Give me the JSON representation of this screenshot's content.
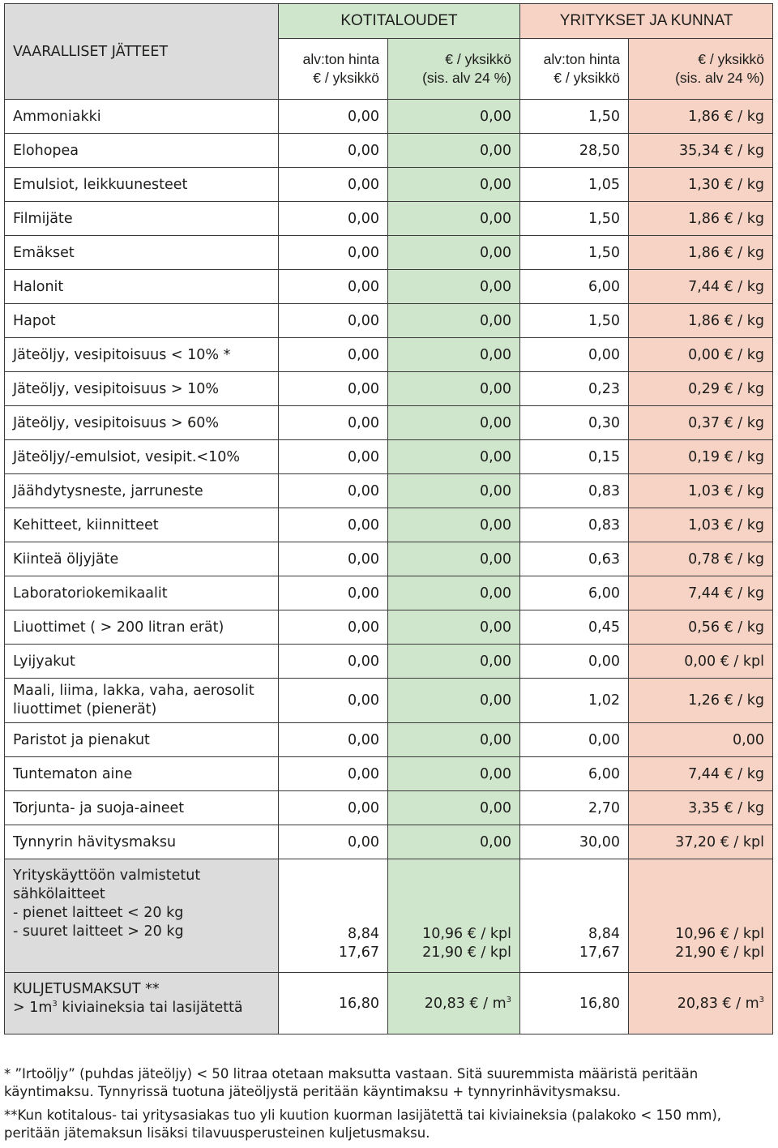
{
  "table": {
    "corner_label": "VAARALLISET JÄTTEET",
    "group_households": "KOTITALOUDET",
    "group_business": "YRITYKSET JA KUNNAT",
    "sub_headers": {
      "h_net_1": "alv:ton hinta",
      "h_net_2": "€ / yksikkö",
      "h_vat_1": "€ / yksikkö",
      "h_vat_2": "(sis. alv 24 %)",
      "y_net_1": "alv:ton hinta",
      "y_net_2": "€ / yksikkö",
      "y_vat_1": "€ / yksikkö",
      "y_vat_2": "(sis. alv 24 %)"
    },
    "rows": [
      {
        "name": "Ammoniakki",
        "h_net": "0,00",
        "h_vat": "0,00",
        "y_net": "1,50",
        "y_vat": "1,86 € / kg"
      },
      {
        "name": "Elohopea",
        "h_net": "0,00",
        "h_vat": "0,00",
        "y_net": "28,50",
        "y_vat": "35,34 € / kg"
      },
      {
        "name": "Emulsiot, leikkuunesteet",
        "h_net": "0,00",
        "h_vat": "0,00",
        "y_net": "1,05",
        "y_vat": "1,30 € / kg"
      },
      {
        "name": "Filmijäte",
        "h_net": "0,00",
        "h_vat": "0,00",
        "y_net": "1,50",
        "y_vat": "1,86 € / kg"
      },
      {
        "name": "Emäkset",
        "h_net": "0,00",
        "h_vat": "0,00",
        "y_net": "1,50",
        "y_vat": "1,86 € / kg"
      },
      {
        "name": "Halonit",
        "h_net": "0,00",
        "h_vat": "0,00",
        "y_net": "6,00",
        "y_vat": "7,44 € / kg"
      },
      {
        "name": "Hapot",
        "h_net": "0,00",
        "h_vat": "0,00",
        "y_net": "1,50",
        "y_vat": "1,86 € / kg"
      },
      {
        "name": "Jäteöljy, vesipitoisuus < 10% *",
        "h_net": "0,00",
        "h_vat": "0,00",
        "y_net": "0,00",
        "y_vat": "0,00 € / kg"
      },
      {
        "name": "Jäteöljy, vesipitoisuus > 10%",
        "h_net": "0,00",
        "h_vat": "0,00",
        "y_net": "0,23",
        "y_vat": "0,29 € / kg"
      },
      {
        "name": "Jäteöljy, vesipitoisuus > 60%",
        "h_net": "0,00",
        "h_vat": "0,00",
        "y_net": "0,30",
        "y_vat": "0,37 € / kg"
      },
      {
        "name": "Jäteöljy/-emulsiot, vesipit.<10%",
        "h_net": "0,00",
        "h_vat": "0,00",
        "y_net": "0,15",
        "y_vat": "0,19 € / kg"
      },
      {
        "name": "Jäähdytysneste, jarruneste",
        "h_net": "0,00",
        "h_vat": "0,00",
        "y_net": "0,83",
        "y_vat": "1,03 € / kg"
      },
      {
        "name": "Kehitteet, kiinnitteet",
        "h_net": "0,00",
        "h_vat": "0,00",
        "y_net": "0,83",
        "y_vat": "1,03 € / kg"
      },
      {
        "name": "Kiinteä öljyjäte",
        "h_net": "0,00",
        "h_vat": "0,00",
        "y_net": "0,63",
        "y_vat": "0,78 € / kg"
      },
      {
        "name": "Laboratoriokemikaalit",
        "h_net": "0,00",
        "h_vat": "0,00",
        "y_net": "6,00",
        "y_vat": "7,44 € / kg"
      },
      {
        "name": "Liuottimet ( > 200 litran erät)",
        "h_net": "0,00",
        "h_vat": "0,00",
        "y_net": "0,45",
        "y_vat": "0,56 € / kg"
      },
      {
        "name": "Lyijyakut",
        "h_net": "0,00",
        "h_vat": "0,00",
        "y_net": "0,00",
        "y_vat": "0,00  € / kpl"
      }
    ],
    "maali_row": {
      "name_1": "Maali, liima, lakka, vaha, aerosolit",
      "name_2": "liuottimet (pienerät)",
      "h_net": "0,00",
      "h_vat": "0,00",
      "y_net": "1,02",
      "y_vat": "1,26 € / kg"
    },
    "rows_b": [
      {
        "name": "Paristot ja pienakut",
        "h_net": "0,00",
        "h_vat": "0,00",
        "y_net": "0,00",
        "y_vat": "0,00"
      },
      {
        "name": "Tuntematon aine",
        "h_net": "0,00",
        "h_vat": "0,00",
        "y_net": "6,00",
        "y_vat": "7,44 € / kg"
      },
      {
        "name": "Torjunta- ja suoja-aineet",
        "h_net": "0,00",
        "h_vat": "0,00",
        "y_net": "2,70",
        "y_vat": "3,35 € / kg"
      },
      {
        "name": "Tynnyrin hävitysmaksu",
        "h_net": "0,00",
        "h_vat": "0,00",
        "y_net": "30,00",
        "y_vat": "37,20 € / kpl"
      }
    ],
    "electronics_row": {
      "name_1": "Yrityskäyttöön valmistetut",
      "name_2": "sähkölaitteet",
      "name_3": "- pienet laitteet < 20 kg",
      "name_4": "- suuret laitteet > 20 kg",
      "h_net_1": "8,84",
      "h_net_2": "17,67",
      "h_vat_1": "10,96 € / kpl",
      "h_vat_2": "21,90 € / kpl",
      "y_net_1": "8,84",
      "y_net_2": "17,67",
      "y_vat_1": "10,96 € / kpl",
      "y_vat_2": "21,90 € / kpl"
    },
    "transport_row": {
      "name_1": "KULJETUSMAKSUT **",
      "name_2a": "> 1m",
      "name_2sup": "3",
      "name_2b": " kiviaineksia tai lasijätettä",
      "h_net": "16,80",
      "h_vat": "20,83 € / m",
      "h_vat_sup": "3",
      "y_net": "16,80",
      "y_vat": "20,83 € / m",
      "y_vat_sup": "3"
    }
  },
  "footnotes": {
    "note1": "* ”Irtoöljy” (puhdas jäteöljy)  < 50 litraa otetaan maksutta vastaan. Sitä suuremmista määristä peritään käyntimaksu. Tynnyrissä tuotuna jäteöljystä peritään käyntimaksu + tynnyrinhävitysmaksu.",
    "note2": "**Kun kotitalous- tai yritysasiakas tuo yli kuution kuorman lasijätettä tai kiviaineksia  (palakoko < 150 mm), peritään jätemaksun lisäksi tilavuusperusteinen kuljetusmaksu."
  }
}
